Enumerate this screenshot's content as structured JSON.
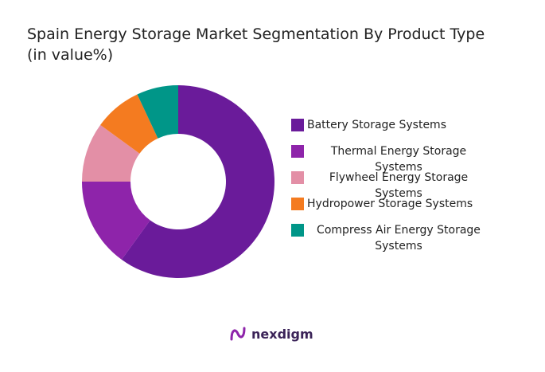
{
  "chart_data": {
    "type": "donut",
    "title": "Spain Energy Storage Market Segmentation By Product Type",
    "subtitle": "(in value%)",
    "categories": [
      "Battery Storage Systems",
      "Thermal Energy Storage Systems",
      "Flywheel Energy Storage Systems",
      "Hydropower Storage Systems",
      "Compress Air Energy Storage Systems"
    ],
    "values": [
      60,
      15,
      10,
      8,
      7
    ],
    "colors": [
      "#6a1b9a",
      "#8e24aa",
      "#e38fa6",
      "#f47b20",
      "#009688"
    ],
    "legend": "right"
  },
  "brand": "nexdigm"
}
